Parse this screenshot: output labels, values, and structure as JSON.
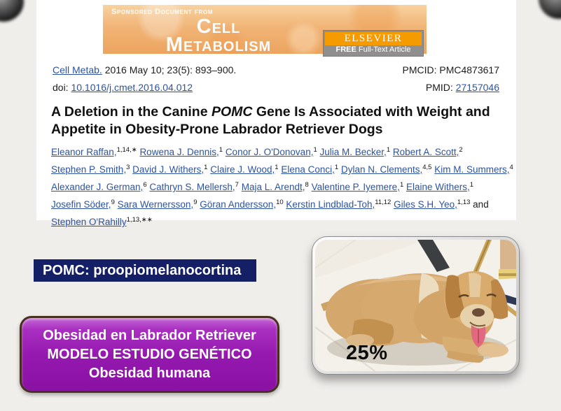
{
  "colors": {
    "slide_bg": "#f0eeeb",
    "banner_orange": "#f1b477",
    "elsevier_orange": "#f59b00",
    "badge_gray": "#8f8f8f",
    "link_blue": "#2d53a0",
    "pomc_navy": "#141f66",
    "purple": "#9519af"
  },
  "banner": {
    "sponsored": "Sponsored Document from",
    "journal_line1": "Cell",
    "journal_line2": "Metabolism",
    "elsevier": "ELSEVIER",
    "free_bold": "FREE",
    "free_rest": " Full-Text Article"
  },
  "citation": {
    "journal_link": "Cell Metab.",
    "issue_text": " 2016 May 10; 23(5): 893–900.",
    "doi_label": "doi: ",
    "doi_link": "10.1016/j.cmet.2016.04.012",
    "pmcid_text": "PMCID: PMC4873617",
    "pmid_label": "PMID: ",
    "pmid_link": "27157046"
  },
  "title": {
    "part1": "A Deletion in the Canine ",
    "italic": "POMC",
    "part2": " Gene Is Associated with Weight and Appetite in Obesity-Prone Labrador Retriever Dogs"
  },
  "authors": {
    "lines": [
      [
        {
          "link": "Eleanor Raffan,",
          "sup": "1,14,∗"
        },
        {
          "link": "Rowena J. Dennis,",
          "sup": "1"
        },
        {
          "link": "Conor J. O'Donovan,",
          "sup": "1"
        },
        {
          "link": "Julia M. Becker,",
          "sup": "1"
        },
        {
          "link": "Robert A. Scott,",
          "sup": "2"
        }
      ],
      [
        {
          "link": "Stephen P. Smith,",
          "sup": "3"
        },
        {
          "link": "David J. Withers,",
          "sup": "1"
        },
        {
          "link": "Claire J. Wood,",
          "sup": "1"
        },
        {
          "link": "Elena Conci,",
          "sup": "1"
        },
        {
          "link": "Dylan N. Clements,",
          "sup": "4,5"
        },
        {
          "link": "Kim M. Summers,",
          "sup": "4"
        }
      ],
      [
        {
          "link": "Alexander J. German,",
          "sup": "6"
        },
        {
          "link": "Cathryn S. Mellersh,",
          "sup": "7"
        },
        {
          "link": "Maja L. Arendt,",
          "sup": "8"
        },
        {
          "link": "Valentine P. Iyemere,",
          "sup": "1"
        },
        {
          "link": "Elaine Withers,",
          "sup": "1"
        }
      ],
      [
        {
          "link": "Josefin Söder,",
          "sup": "9"
        },
        {
          "link": "Sara Wernersson,",
          "sup": "9"
        },
        {
          "link": "Göran Andersson,",
          "sup": "10"
        },
        {
          "link": "Kerstin Lindblad-Toh,",
          "sup": "11,12"
        },
        {
          "link": "Giles S.H. Yeo,",
          "sup": "1,13"
        },
        {
          "plain": "and"
        }
      ],
      [
        {
          "link": "Stephen O'Rahilly",
          "sup": "1,13,∗∗"
        }
      ]
    ]
  },
  "annotations": {
    "pomc_box": "POMC: proopiomelanocortina",
    "purple_box": {
      "lines": [
        "Obesidad en Labrador Retriever",
        "MODELO ESTUDIO GENÉTICO",
        "Obesidad humana"
      ]
    },
    "photo_label": "25%"
  }
}
